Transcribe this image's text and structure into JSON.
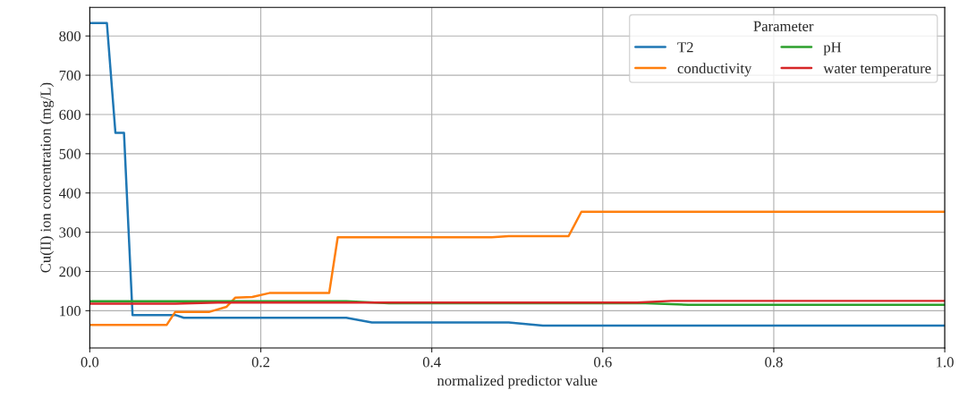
{
  "chart_data": {
    "type": "line",
    "xlabel": "normalized predictor value",
    "ylabel": "Cu(II) ion concentration (mg/L)",
    "legend_title": "Parameter",
    "xlim": [
      0,
      1
    ],
    "xticks": [
      {
        "value": 0,
        "label": "0.0"
      },
      {
        "value": 0.2,
        "label": "0.2"
      },
      {
        "value": 0.4,
        "label": "0.4"
      },
      {
        "value": 0.6,
        "label": "0.6"
      },
      {
        "value": 0.8,
        "label": "0.8"
      },
      {
        "value": 1,
        "label": "1.0"
      }
    ],
    "ylim": [
      5,
      873
    ],
    "yticks": [
      100,
      200,
      300,
      400,
      500,
      600,
      700,
      800
    ],
    "grid": true,
    "legend": "top right",
    "series": [
      {
        "name": "T2",
        "color": "#1f77b4",
        "x": [
          0,
          0.02,
          0.03,
          0.04,
          0.05,
          0.1,
          0.11,
          0.3,
          0.33,
          0.49,
          0.53,
          1.0
        ],
        "values": [
          833,
          833,
          553,
          553,
          89,
          89,
          82,
          82,
          70,
          70,
          62,
          62
        ]
      },
      {
        "name": "conductivity",
        "color": "#ff7f0e",
        "x": [
          0,
          0.09,
          0.1,
          0.14,
          0.16,
          0.17,
          0.19,
          0.21,
          0.28,
          0.29,
          0.47,
          0.49,
          0.56,
          0.575,
          1.0
        ],
        "values": [
          64,
          64,
          97,
          97,
          110,
          133,
          135,
          145,
          145,
          287,
          287,
          290,
          290,
          352,
          352
        ]
      },
      {
        "name": "pH",
        "color": "#2ca02c",
        "x": [
          0,
          0.3,
          0.35,
          0.65,
          0.7,
          1.0
        ],
        "values": [
          124,
          124,
          119,
          119,
          115,
          115
        ]
      },
      {
        "name": "water temperature",
        "color": "#d62728",
        "x": [
          0,
          0.1,
          0.15,
          0.64,
          0.68,
          1.0
        ],
        "values": [
          118,
          118,
          121,
          121,
          125,
          125
        ]
      }
    ]
  }
}
